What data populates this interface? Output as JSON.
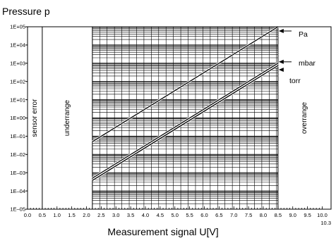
{
  "chart_data": {
    "type": "line",
    "title": "Pressure p",
    "xlabel": "Measurement signal U[V]",
    "ylabel": "",
    "log_y": true,
    "xlim": [
      0.0,
      10.3
    ],
    "ylim": [
      1e-05,
      100000.0
    ],
    "grid": true,
    "x_tick_labels": [
      "0.0",
      "0.5",
      "1.0",
      "1.5",
      "2.0",
      "2.5",
      "3.0",
      "3.5",
      "4.0",
      "4.5",
      "5.0",
      "5.5",
      "6.0",
      "6.5",
      "7.0",
      "7.5",
      "8.0",
      "8.5",
      "9.0",
      "9.5",
      "10.0",
      "10.3"
    ],
    "y_tick_labels": [
      "1E+05",
      "1E+04",
      "1E+03",
      "1E+02",
      "1E+01",
      "1E+00",
      "1E–01",
      "1E–02",
      "1E–03",
      "1E–04",
      "1E–05"
    ],
    "regions": [
      {
        "label": "sensor error",
        "x_from": 0.0,
        "x_to": 0.5
      },
      {
        "label": "underrange",
        "x_from": 0.5,
        "x_to": 2.2
      },
      {
        "label": "overrange",
        "x_from": 8.5,
        "x_to": 10.3
      }
    ],
    "series": [
      {
        "name": "Pa",
        "x": [
          2.2,
          8.5
        ],
        "y": [
          0.05,
          100000
        ]
      },
      {
        "name": "mbar",
        "x": [
          2.2,
          8.5
        ],
        "y": [
          0.0005,
          1000
        ]
      },
      {
        "name": "torr",
        "x": [
          2.2,
          8.5
        ],
        "y": [
          0.000375,
          750
        ]
      }
    ]
  }
}
